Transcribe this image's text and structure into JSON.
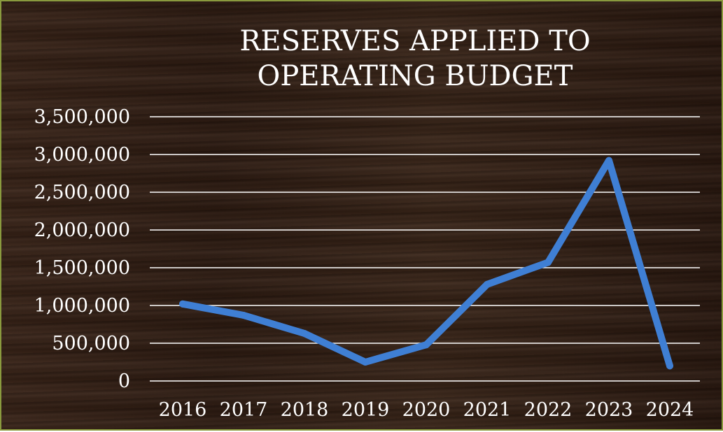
{
  "chart_data": {
    "type": "line",
    "title_lines": [
      "RESERVES APPLIED TO",
      "OPERATING BUDGET"
    ],
    "xlabel": "",
    "ylabel": "",
    "categories": [
      "2016",
      "2017",
      "2018",
      "2019",
      "2020",
      "2021",
      "2022",
      "2023",
      "2024"
    ],
    "series": [
      {
        "values": [
          1020000,
          870000,
          630000,
          250000,
          480000,
          1280000,
          1570000,
          2920000,
          200000
        ]
      }
    ],
    "ylim": [
      0,
      3500000
    ],
    "yticks": [
      "0",
      "500,000",
      "1,000,000",
      "1,500,000",
      "2,000,000",
      "2,500,000",
      "3,000,000",
      "3,500,000"
    ],
    "ytick_values": [
      0,
      500000,
      1000000,
      1500000,
      2000000,
      2500000,
      3000000,
      3500000
    ],
    "grid": true,
    "legend": "none",
    "colors": {
      "line": "#3f7fd4",
      "grid": "#ffffff",
      "text": "#ffffff",
      "border": "#8a9a3e"
    }
  }
}
